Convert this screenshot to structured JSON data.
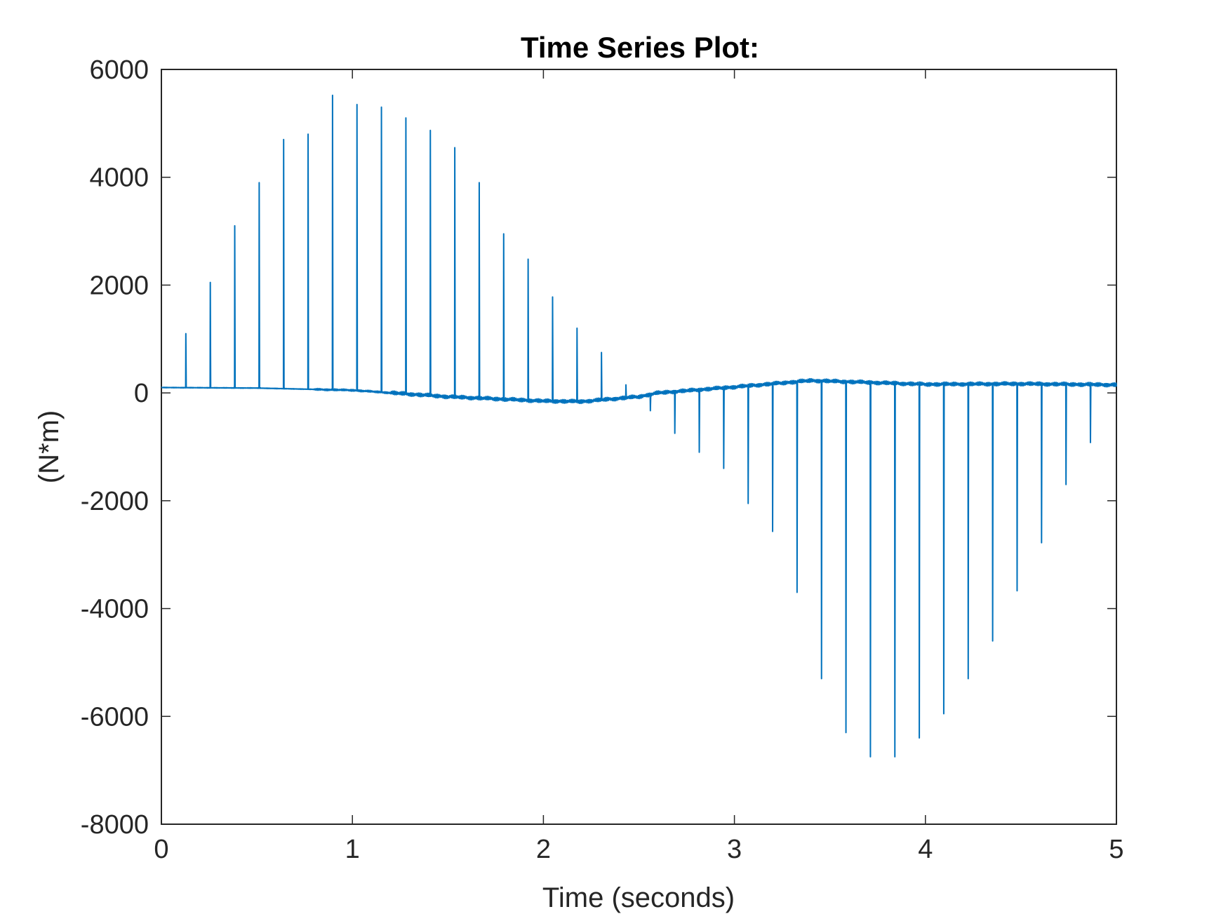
{
  "chart_data": {
    "type": "line",
    "title": "Time Series Plot:",
    "xlabel": "Time (seconds)",
    "ylabel": "(N*m)",
    "xlim": [
      0,
      5
    ],
    "ylim": [
      -8000,
      6000
    ],
    "x_ticks": [
      0,
      1,
      2,
      3,
      4,
      5
    ],
    "x_tick_labels": [
      "0",
      "1",
      "2",
      "3",
      "4",
      "5"
    ],
    "y_ticks": [
      6000,
      4000,
      2000,
      0,
      -2000,
      -4000,
      -6000,
      -8000
    ],
    "y_tick_labels": [
      "6000",
      "4000",
      "2000",
      "0",
      "-2000",
      "-4000",
      "-6000",
      "-8000"
    ],
    "grid": false,
    "legend": "none",
    "colors": {
      "series": "#0072bd",
      "axes": "#262626",
      "background": "#ffffff"
    },
    "baseline": {
      "x": [
        0,
        0.5,
        1.0,
        1.5,
        2.0,
        2.2,
        2.5,
        2.6,
        3.0,
        3.4,
        4.0,
        4.5,
        5.0
      ],
      "y": [
        100,
        90,
        50,
        -70,
        -150,
        -160,
        -70,
        0,
        110,
        230,
        160,
        170,
        150
      ]
    },
    "spikes": {
      "x": [
        0.128,
        0.256,
        0.384,
        0.512,
        0.64,
        0.768,
        0.896,
        1.024,
        1.152,
        1.28,
        1.408,
        1.536,
        1.664,
        1.792,
        1.92,
        2.048,
        2.176,
        2.304,
        2.432,
        2.56,
        2.688,
        2.816,
        2.944,
        3.072,
        3.2,
        3.328,
        3.456,
        3.584,
        3.712,
        3.84,
        3.968,
        4.096,
        4.224,
        4.352,
        4.48,
        4.608,
        4.736,
        4.864
      ],
      "y": [
        1100,
        2050,
        3100,
        3900,
        4700,
        4800,
        5520,
        5350,
        5300,
        5100,
        4870,
        4550,
        3900,
        2950,
        2480,
        1780,
        1200,
        750,
        150,
        -330,
        -750,
        -1100,
        -1400,
        -2050,
        -2570,
        -3700,
        -5300,
        -6300,
        -6750,
        -6750,
        -6400,
        -5950,
        -5300,
        -4600,
        -3670,
        -2780,
        -1700,
        -920
      ]
    },
    "noise_amplitude": 40
  }
}
